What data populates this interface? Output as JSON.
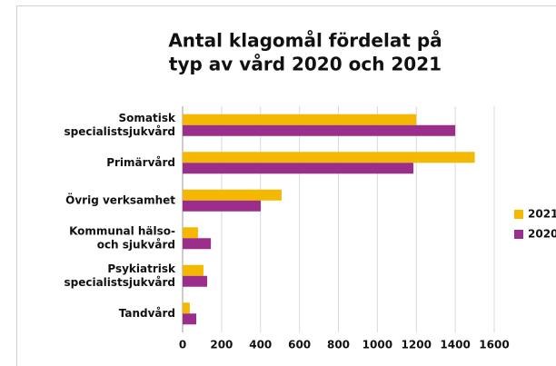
{
  "chart_data": {
    "type": "bar",
    "orientation": "horizontal",
    "title": [
      "Antal klagomål fördelat på",
      "typ av vård 2020 och 2021"
    ],
    "categories": [
      [
        "Somatisk",
        "specialistsjukvård"
      ],
      [
        "Primärvård"
      ],
      [
        "Övrig verksamhet"
      ],
      [
        "Kommunal hälso-",
        "och sjukvård"
      ],
      [
        "Psykiatrisk",
        "specialistsjukvård"
      ],
      [
        "Tandvård"
      ]
    ],
    "series": [
      {
        "name": "2021",
        "color": "#f5b800",
        "values": [
          1200,
          1500,
          508,
          79,
          107,
          37
        ]
      },
      {
        "name": "2020",
        "color": "#9b2d8b",
        "values": [
          1400,
          1185,
          401,
          145,
          126,
          70
        ]
      }
    ],
    "xlim": [
      0,
      1600
    ],
    "xticks": [
      0,
      200,
      400,
      600,
      800,
      1000,
      1200,
      1400,
      1600
    ],
    "grid": true,
    "legend": "right"
  }
}
